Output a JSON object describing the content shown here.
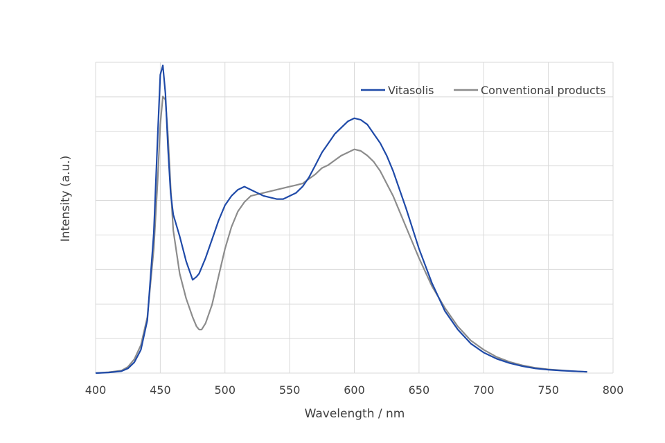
{
  "chart_data": {
    "type": "line",
    "title": "",
    "xlabel": "Wavelength / nm",
    "ylabel": "Intensity (a.u.)",
    "xlim": [
      400,
      800
    ],
    "ylim": [
      0,
      1.0
    ],
    "x_ticks": [
      "400",
      "450",
      "500",
      "550",
      "600",
      "650",
      "700",
      "750",
      "800"
    ],
    "y_gridlines": 9,
    "grid": true,
    "y_tick_labels_shown": false,
    "legend": {
      "placement": "top-right"
    },
    "series": [
      {
        "name": "Vitasolis",
        "color": "#1f4aa8",
        "x": [
          400,
          410,
          420,
          425,
          430,
          435,
          440,
          445,
          448,
          450,
          452,
          454,
          456,
          458,
          460,
          465,
          470,
          475,
          478,
          480,
          485,
          490,
          495,
          500,
          505,
          510,
          515,
          520,
          525,
          530,
          535,
          540,
          545,
          550,
          555,
          560,
          565,
          570,
          575,
          580,
          585,
          590,
          595,
          600,
          605,
          610,
          615,
          620,
          625,
          630,
          640,
          650,
          660,
          670,
          680,
          690,
          700,
          710,
          720,
          730,
          740,
          750,
          760,
          770,
          780
        ],
        "y": [
          0.0,
          0.002,
          0.006,
          0.015,
          0.035,
          0.075,
          0.17,
          0.45,
          0.76,
          0.96,
          0.99,
          0.9,
          0.72,
          0.58,
          0.51,
          0.44,
          0.36,
          0.3,
          0.31,
          0.32,
          0.37,
          0.43,
          0.49,
          0.54,
          0.57,
          0.59,
          0.6,
          0.59,
          0.58,
          0.57,
          0.565,
          0.56,
          0.56,
          0.57,
          0.58,
          0.6,
          0.63,
          0.67,
          0.71,
          0.74,
          0.77,
          0.79,
          0.81,
          0.82,
          0.815,
          0.8,
          0.77,
          0.74,
          0.7,
          0.65,
          0.53,
          0.4,
          0.29,
          0.2,
          0.14,
          0.095,
          0.066,
          0.046,
          0.032,
          0.022,
          0.015,
          0.011,
          0.008,
          0.006,
          0.004
        ]
      },
      {
        "name": "Conventional products",
        "color": "#8c8c8c",
        "x": [
          400,
          410,
          420,
          425,
          430,
          435,
          440,
          445,
          448,
          450,
          452,
          454,
          456,
          458,
          460,
          465,
          470,
          475,
          478,
          480,
          482,
          485,
          490,
          495,
          500,
          505,
          510,
          515,
          520,
          525,
          530,
          535,
          540,
          545,
          550,
          555,
          560,
          565,
          570,
          575,
          580,
          585,
          590,
          595,
          600,
          605,
          610,
          615,
          620,
          625,
          630,
          640,
          650,
          660,
          670,
          680,
          690,
          700,
          710,
          720,
          730,
          740,
          750,
          760,
          770,
          780
        ],
        "y": [
          0.0,
          0.003,
          0.008,
          0.02,
          0.045,
          0.09,
          0.18,
          0.4,
          0.62,
          0.8,
          0.89,
          0.88,
          0.76,
          0.6,
          0.46,
          0.32,
          0.24,
          0.18,
          0.15,
          0.14,
          0.14,
          0.16,
          0.22,
          0.31,
          0.4,
          0.47,
          0.52,
          0.55,
          0.57,
          0.575,
          0.58,
          0.585,
          0.59,
          0.595,
          0.6,
          0.605,
          0.61,
          0.625,
          0.64,
          0.66,
          0.67,
          0.685,
          0.7,
          0.71,
          0.72,
          0.715,
          0.7,
          0.68,
          0.65,
          0.61,
          0.57,
          0.47,
          0.37,
          0.28,
          0.21,
          0.15,
          0.105,
          0.075,
          0.052,
          0.036,
          0.025,
          0.017,
          0.012,
          0.009,
          0.006,
          0.004
        ]
      }
    ]
  }
}
